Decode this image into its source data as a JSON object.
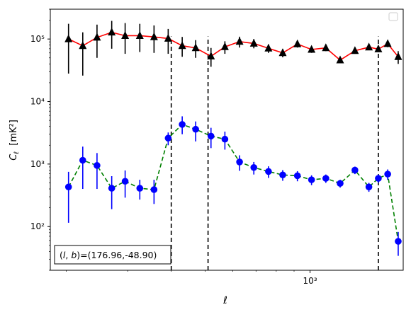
{
  "chart_data": {
    "type": "scatter",
    "x_scale": "log",
    "y_scale": "log",
    "xlabel": "ℓ",
    "ylabel": "Cℓ  [mK²]",
    "ylabel_parts": {
      "symbol": "C",
      "subscript": "ℓ",
      "unit": "[mK²]"
    },
    "xlim": [
      180,
      1850
    ],
    "ylim": [
      20,
      300000
    ],
    "x_ticks": [
      {
        "value": 1000,
        "label": "10³"
      }
    ],
    "y_ticks": [
      {
        "value": 100,
        "label": "10²"
      },
      {
        "value": 1000,
        "label": "10³"
      },
      {
        "value": 10000,
        "label": "10⁴"
      },
      {
        "value": 100000,
        "label": "10⁵"
      }
    ],
    "vlines": [
      400,
      510,
      1570
    ],
    "annotation": "(l, b)=(176.96,-48.90)",
    "annotation_parts": {
      "prefix": "(",
      "l": "l",
      "sep": ", ",
      "b": "b",
      "suffix": ")=(176.96,-48.90)"
    },
    "legend": {
      "position": "top-right",
      "entries": []
    },
    "series": [
      {
        "marker": "triangle",
        "line_color": "#ff0000",
        "marker_color": "#000000",
        "line_style": "solid",
        "points": [
          {
            "x": 203,
            "y": 100000,
            "lo": 28000,
            "hi": 175000
          },
          {
            "x": 223,
            "y": 78000,
            "lo": 26000,
            "hi": 128000
          },
          {
            "x": 245,
            "y": 106000,
            "lo": 50000,
            "hi": 170000
          },
          {
            "x": 270,
            "y": 128000,
            "lo": 70000,
            "hi": 195000
          },
          {
            "x": 295,
            "y": 113000,
            "lo": 58000,
            "hi": 180000
          },
          {
            "x": 325,
            "y": 113000,
            "lo": 62000,
            "hi": 175000
          },
          {
            "x": 357,
            "y": 108000,
            "lo": 60000,
            "hi": 165000
          },
          {
            "x": 392,
            "y": 102000,
            "lo": 58000,
            "hi": 145000
          },
          {
            "x": 430,
            "y": 78000,
            "lo": 52000,
            "hi": 108000
          },
          {
            "x": 470,
            "y": 72000,
            "lo": 50000,
            "hi": 96000
          },
          {
            "x": 520,
            "y": 53000,
            "lo": 36000,
            "hi": 72000
          },
          {
            "x": 570,
            "y": 75000,
            "lo": 58000,
            "hi": 92000
          },
          {
            "x": 628,
            "y": 91000,
            "lo": 73000,
            "hi": 109000
          },
          {
            "x": 690,
            "y": 85000,
            "lo": 71000,
            "hi": 100000
          },
          {
            "x": 760,
            "y": 71000,
            "lo": 60000,
            "hi": 82000
          },
          {
            "x": 835,
            "y": 60000,
            "lo": 51000,
            "hi": 69000
          },
          {
            "x": 920,
            "y": 83000,
            "lo": 73000,
            "hi": 93000
          },
          {
            "x": 1010,
            "y": 68000,
            "lo": 60000,
            "hi": 76000
          },
          {
            "x": 1110,
            "y": 72000,
            "lo": 64000,
            "hi": 80000
          },
          {
            "x": 1220,
            "y": 46000,
            "lo": 41000,
            "hi": 51000
          },
          {
            "x": 1345,
            "y": 65000,
            "lo": 58000,
            "hi": 72000
          },
          {
            "x": 1475,
            "y": 74000,
            "lo": 67000,
            "hi": 81000
          },
          {
            "x": 1570,
            "y": 69000,
            "lo": 62000,
            "hi": 76000
          },
          {
            "x": 1670,
            "y": 84000,
            "lo": 74000,
            "hi": 94000
          },
          {
            "x": 1790,
            "y": 52000,
            "lo": 40000,
            "hi": 64000
          }
        ]
      },
      {
        "marker": "circle",
        "line_color": "#008000",
        "marker_color": "#0000ff",
        "line_style": "dashed",
        "points": [
          {
            "x": 203,
            "y": 430,
            "lo": 115,
            "hi": 750
          },
          {
            "x": 223,
            "y": 1150,
            "lo": 400,
            "hi": 1900
          },
          {
            "x": 245,
            "y": 950,
            "lo": 400,
            "hi": 1500
          },
          {
            "x": 270,
            "y": 410,
            "lo": 190,
            "hi": 640
          },
          {
            "x": 295,
            "y": 530,
            "lo": 290,
            "hi": 790
          },
          {
            "x": 325,
            "y": 410,
            "lo": 270,
            "hi": 560
          },
          {
            "x": 357,
            "y": 390,
            "lo": 230,
            "hi": 560
          },
          {
            "x": 392,
            "y": 2600,
            "lo": 2000,
            "hi": 3200
          },
          {
            "x": 430,
            "y": 4300,
            "lo": 3000,
            "hi": 5800
          },
          {
            "x": 470,
            "y": 3600,
            "lo": 2300,
            "hi": 4800
          },
          {
            "x": 520,
            "y": 2800,
            "lo": 1800,
            "hi": 3800
          },
          {
            "x": 570,
            "y": 2500,
            "lo": 1700,
            "hi": 3300
          },
          {
            "x": 628,
            "y": 1080,
            "lo": 780,
            "hi": 1380
          },
          {
            "x": 690,
            "y": 880,
            "lo": 680,
            "hi": 1080
          },
          {
            "x": 760,
            "y": 760,
            "lo": 600,
            "hi": 920
          },
          {
            "x": 835,
            "y": 670,
            "lo": 540,
            "hi": 800
          },
          {
            "x": 920,
            "y": 650,
            "lo": 530,
            "hi": 770
          },
          {
            "x": 1010,
            "y": 560,
            "lo": 460,
            "hi": 660
          },
          {
            "x": 1110,
            "y": 590,
            "lo": 500,
            "hi": 680
          },
          {
            "x": 1220,
            "y": 490,
            "lo": 420,
            "hi": 560
          },
          {
            "x": 1345,
            "y": 800,
            "lo": 690,
            "hi": 910
          },
          {
            "x": 1475,
            "y": 430,
            "lo": 360,
            "hi": 500
          },
          {
            "x": 1570,
            "y": 590,
            "lo": 500,
            "hi": 680
          },
          {
            "x": 1670,
            "y": 690,
            "lo": 560,
            "hi": 820
          },
          {
            "x": 1790,
            "y": 58,
            "lo": 34,
            "hi": 82
          }
        ]
      }
    ]
  }
}
